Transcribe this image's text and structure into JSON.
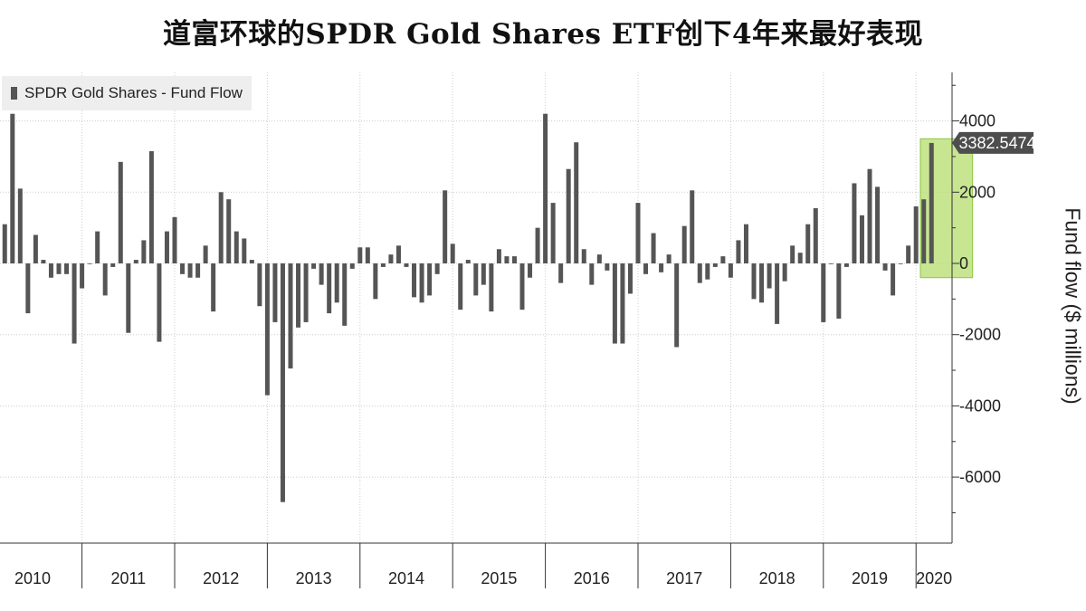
{
  "title": "道富环球的SPDR Gold Shares ETF创下4年来最好表现",
  "legend_label": "SPDR Gold Shares - Fund Flow",
  "y_axis_label": "Fund flow ($ millions)",
  "latest_value_label": "3382.5474",
  "colors": {
    "bar": "#555555",
    "highlight_fill": "#b5dc6e",
    "highlight_stroke": "#8cc63f",
    "grid": "#cccccc",
    "callout": "#4d4d4d"
  },
  "chart_data": {
    "type": "bar",
    "title": "道富环球的SPDR Gold Shares ETF创下4年来最好表现",
    "series_name": "SPDR Gold Shares - Fund Flow",
    "xlabel": "",
    "ylabel": "Fund flow ($ millions)",
    "ylim": [
      -7500,
      5200
    ],
    "yticks": [
      4000,
      2000,
      0,
      -2000,
      -4000,
      -6000
    ],
    "year_labels": [
      "2010",
      "2011",
      "2012",
      "2013",
      "2014",
      "2015",
      "2016",
      "2017",
      "2018",
      "2019",
      "2020"
    ],
    "highlight": {
      "from_month": "2020-01",
      "to_month": "2020-05",
      "ymin": -400,
      "ymax": 3500
    },
    "latest_value": 3382.5474,
    "start_month": "2010-01",
    "values": [
      1100,
      4200,
      2100,
      -1400,
      800,
      100,
      -400,
      -300,
      -300,
      -2250,
      -700,
      0,
      900,
      -900,
      -100,
      2850,
      -1950,
      100,
      650,
      3150,
      -2200,
      900,
      1300,
      -300,
      -400,
      -400,
      500,
      -1350,
      2000,
      1800,
      900,
      700,
      100,
      -1200,
      -3700,
      -1650,
      -6700,
      -2950,
      -1800,
      -1650,
      -150,
      -600,
      -1400,
      -1100,
      -1750,
      -150,
      450,
      450,
      -1000,
      -100,
      250,
      500,
      -100,
      -950,
      -1100,
      -900,
      -300,
      2050,
      550,
      -1300,
      100,
      -900,
      -600,
      -1350,
      400,
      200,
      200,
      -1300,
      -400,
      1000,
      4200,
      1700,
      -550,
      2650,
      3400,
      400,
      -600,
      250,
      -200,
      -2250,
      -2250,
      -850,
      1700,
      -300,
      850,
      -250,
      250,
      -2350,
      1050,
      2050,
      -550,
      -450,
      -100,
      200,
      -400,
      650,
      1100,
      -1000,
      -1100,
      -700,
      -1700,
      -500,
      500,
      300,
      1100,
      1550,
      -1650,
      0,
      -1550,
      -100,
      2250,
      1350,
      2650,
      2150,
      -200,
      -900,
      0,
      500,
      1600,
      1800,
      3382.5474
    ]
  }
}
